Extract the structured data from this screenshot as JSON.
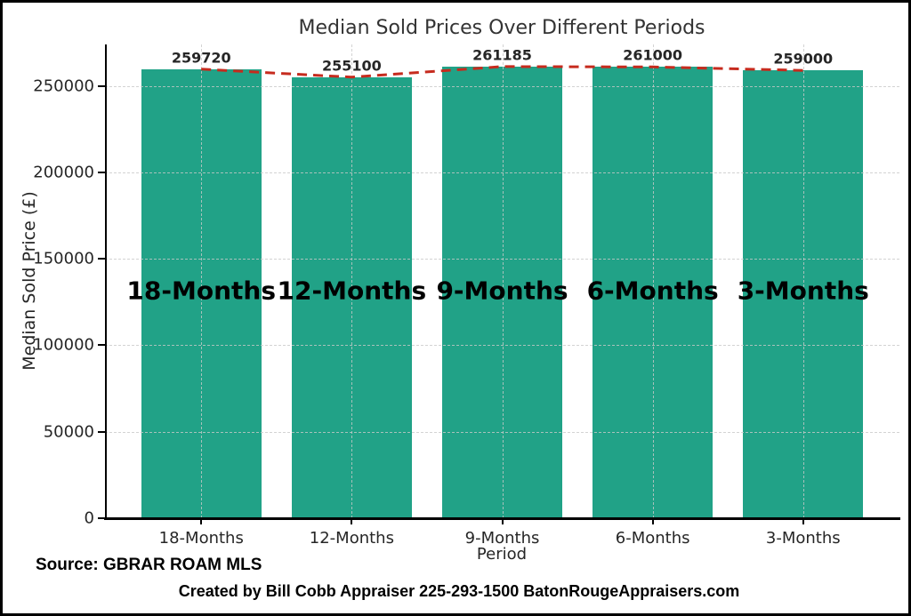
{
  "chart": {
    "title": "Median Sold Prices Over Different Periods",
    "xlabel": "Period",
    "ylabel": "Median Sold Price (£)"
  },
  "chart_data": {
    "type": "bar",
    "categories": [
      "18-Months",
      "12-Months",
      "9-Months",
      "6-Months",
      "3-Months"
    ],
    "values": [
      259720,
      255100,
      261185,
      261000,
      259000
    ],
    "bar_value_labels": [
      "259720",
      "255100",
      "261185",
      "261000",
      "259000"
    ],
    "overlay_labels": [
      "18-Months",
      "12-Months",
      "9-Months",
      "6-Months",
      "3-Months"
    ],
    "title": "Median Sold Prices Over Different Periods",
    "xlabel": "Period",
    "ylabel": "Median Sold Price (£)",
    "ylim": [
      0,
      274000
    ],
    "yticks": [
      0,
      50000,
      100000,
      150000,
      200000,
      250000
    ],
    "grid": true,
    "legend": false,
    "bar_color": "#21a287",
    "trend_line_color": "#c62b1e",
    "trend_line_style": "dashed"
  },
  "footer": {
    "source": "Source: GBRAR ROAM MLS",
    "credit": "Created by Bill Cobb Appraiser 225-293-1500  BatonRougeAppraisers.com"
  }
}
